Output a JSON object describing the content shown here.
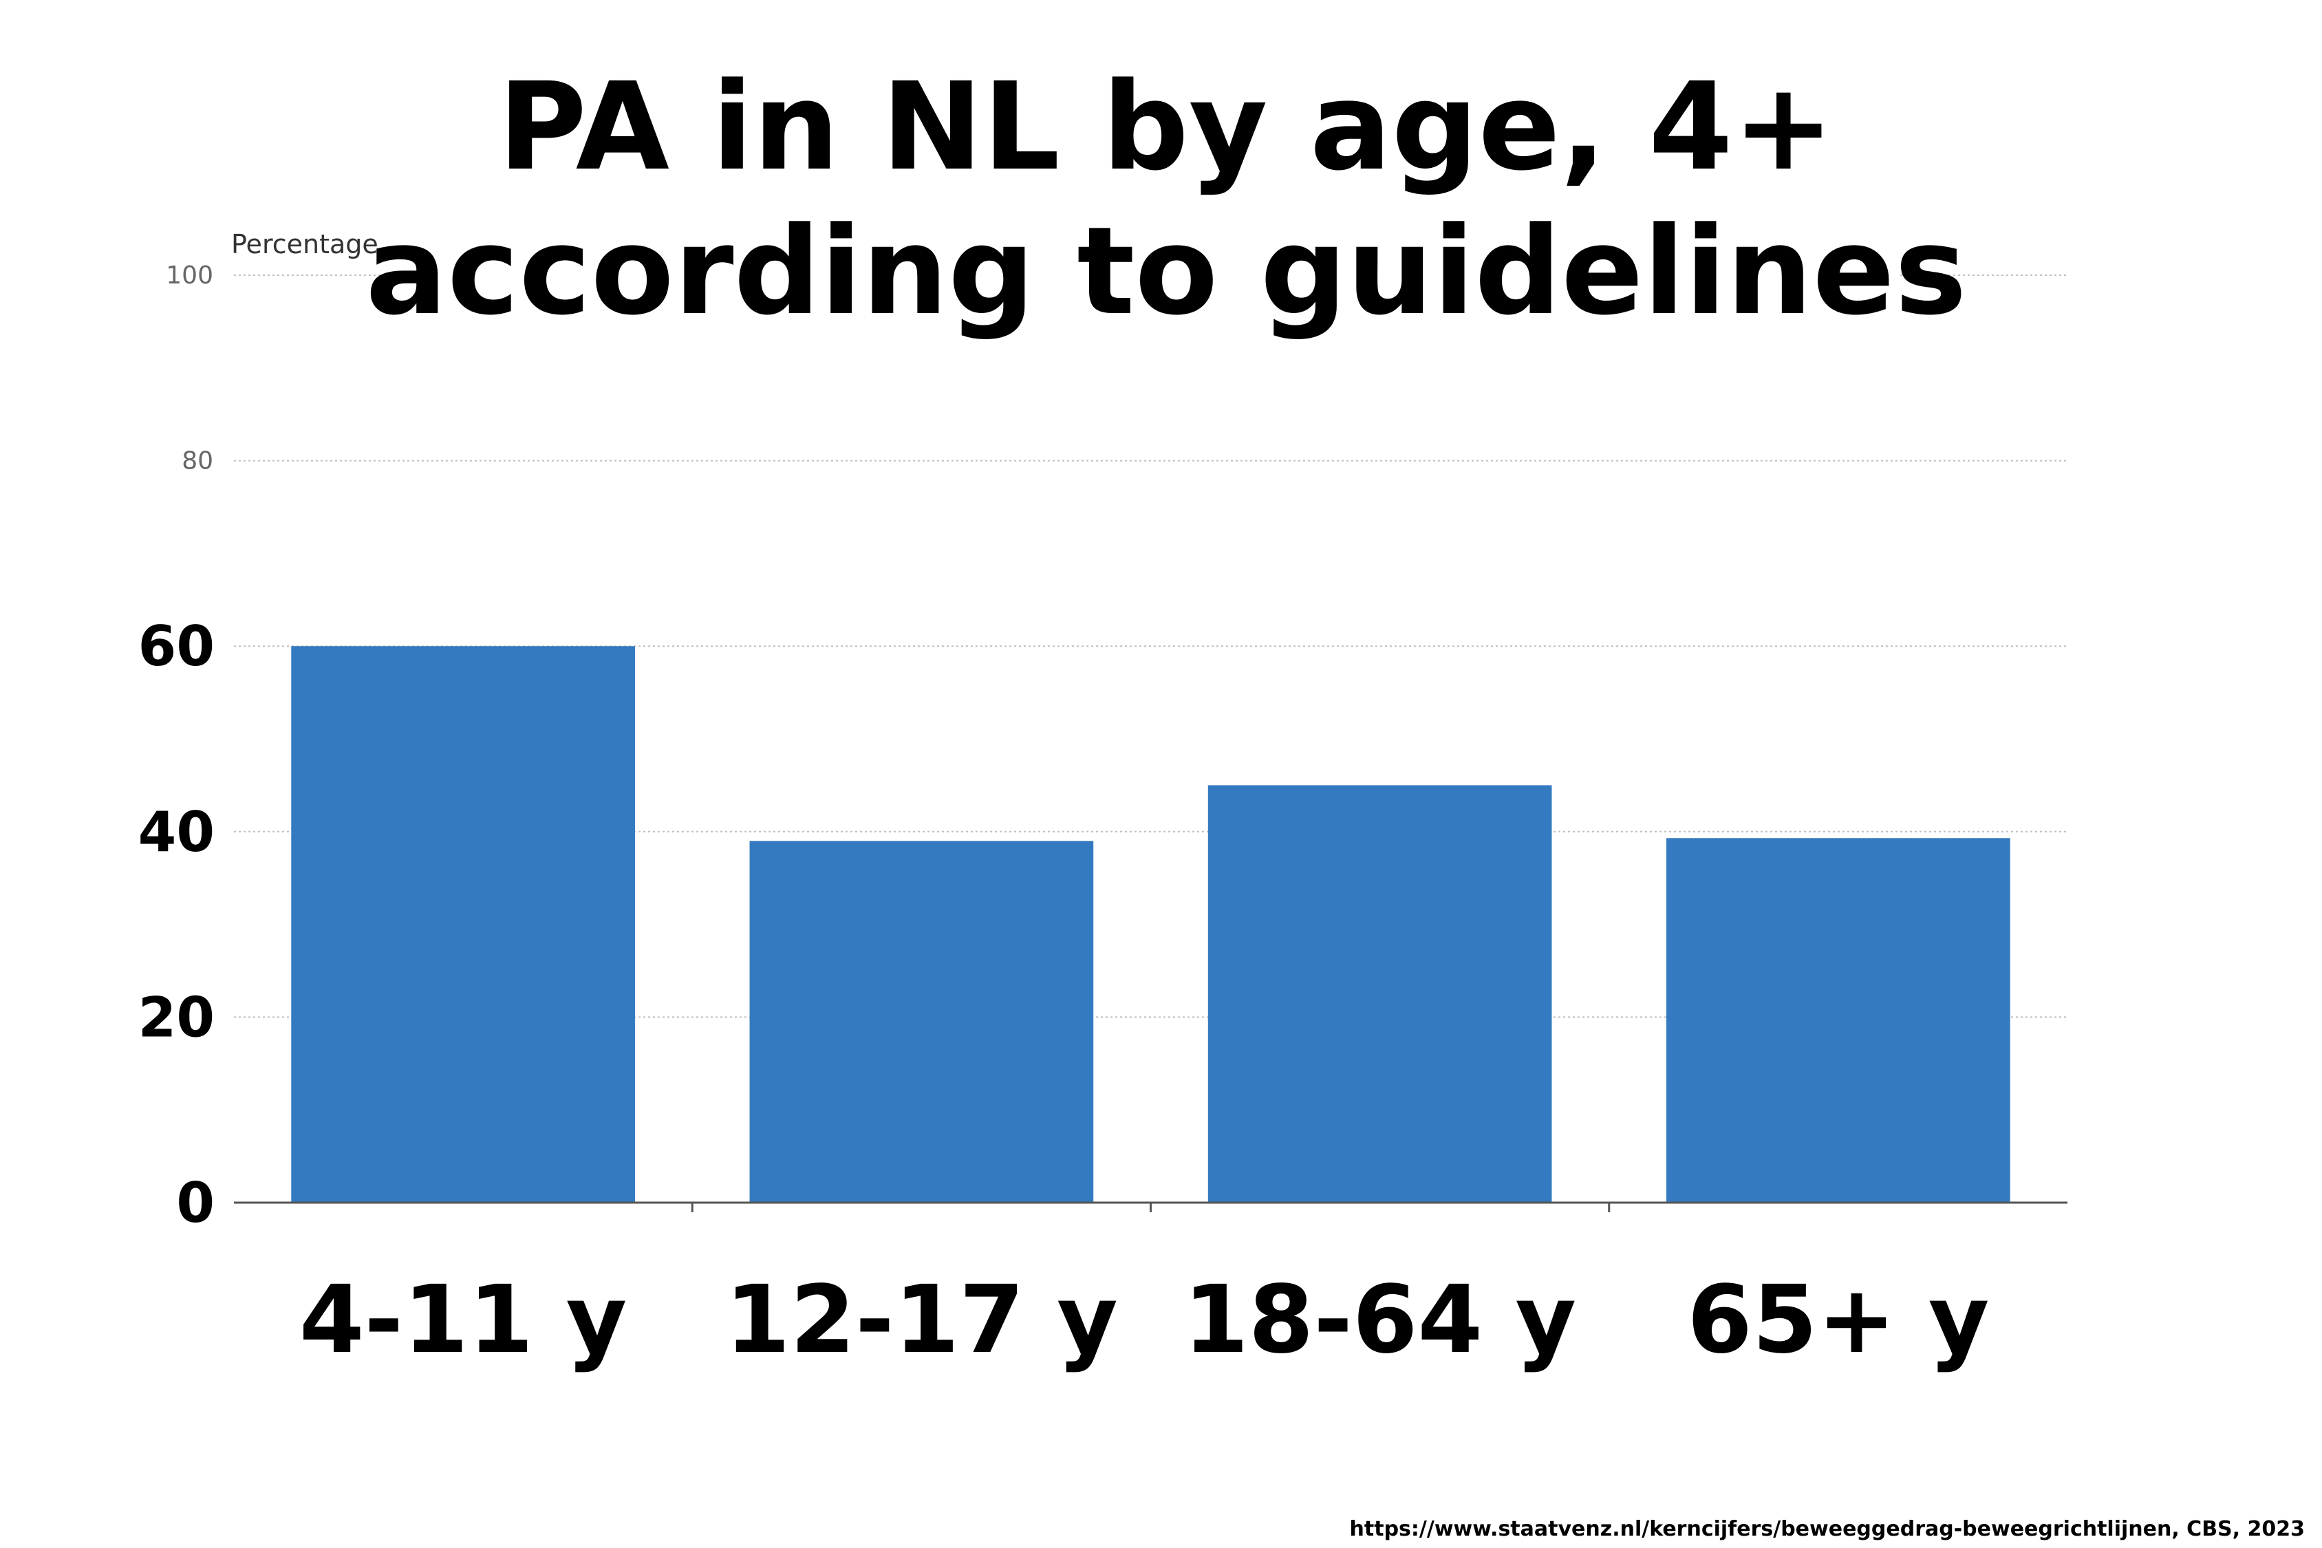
{
  "chart_data": {
    "type": "bar",
    "title_lines": [
      "PA in NL by age, 4+",
      "according to guidelines"
    ],
    "ylabel": "Percentage",
    "xlabel": "",
    "categories": [
      "4-11 y",
      "12-17 y",
      "18-64 y",
      "65+ y"
    ],
    "values": [
      60,
      39,
      45,
      39.3
    ],
    "ylim": [
      0,
      100
    ],
    "yticks": [
      "0",
      "20",
      "40",
      "60",
      "80",
      "100"
    ],
    "bar_color": "#337ac0",
    "grid": true,
    "legend": "none",
    "source": "https://www.staatvenz.nl/kerncijfers/beweeggedrag-beweegrichtlijnen, CBS, 2023"
  }
}
